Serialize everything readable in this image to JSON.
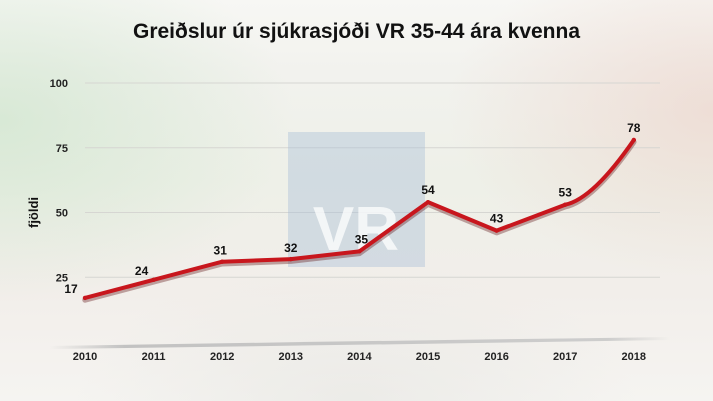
{
  "chart_data": {
    "type": "line",
    "title": "Greiðslur úr sjúkrasjóði VR 35-44 ára kvenna",
    "ylabel": "fjöldi",
    "xlabel": "",
    "categories": [
      "2010",
      "2011",
      "2012",
      "2013",
      "2014",
      "2015",
      "2016",
      "2017",
      "2018"
    ],
    "series": [
      {
        "values": [
          17,
          24,
          31,
          32,
          35,
          54,
          43,
          53,
          78
        ]
      }
    ],
    "ylim": [
      0,
      100
    ],
    "yticks": [
      25,
      50,
      75,
      100
    ],
    "grid": true,
    "legend": "none",
    "line_color": "#c8161d",
    "watermark": "VR"
  }
}
